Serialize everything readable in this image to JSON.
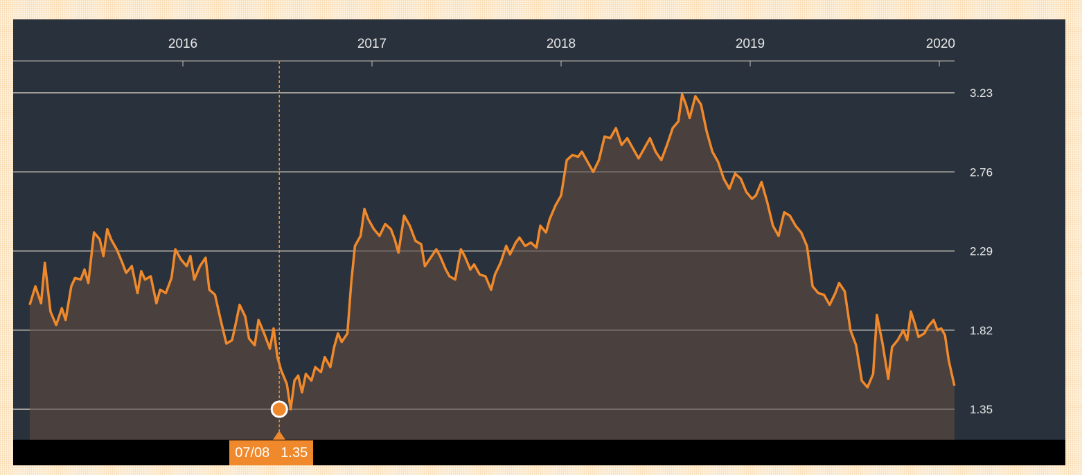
{
  "colors": {
    "background": "#29323c",
    "line": "#f0892b",
    "area": "#4a413f",
    "gridline": "#c9c2b8",
    "tag": "#f0892b"
  },
  "tooltip": {
    "date": "07/08",
    "value": "1.35"
  },
  "chart_data": {
    "type": "area",
    "title": "",
    "xlabel": "",
    "ylabel": "",
    "x_ticks": [
      "2016",
      "2017",
      "2018",
      "2019",
      "2020"
    ],
    "y_ticks": [
      "1.35",
      "1.82",
      "2.29",
      "2.76",
      "3.23"
    ],
    "ylim": [
      1.17,
      3.43
    ],
    "xlim": [
      2015.19,
      2020.08
    ],
    "grid": "horizontal",
    "highlight": {
      "x": 2016.51,
      "y": 1.35,
      "label_date": "07/08",
      "label_value": "1.35"
    },
    "series": [
      {
        "points": [
          [
            2015.19,
            1.97
          ],
          [
            2015.22,
            2.08
          ],
          [
            2015.25,
            1.98
          ],
          [
            2015.27,
            2.22
          ],
          [
            2015.3,
            1.93
          ],
          [
            2015.33,
            1.85
          ],
          [
            2015.36,
            1.95
          ],
          [
            2015.38,
            1.88
          ],
          [
            2015.41,
            2.08
          ],
          [
            2015.43,
            2.13
          ],
          [
            2015.46,
            2.12
          ],
          [
            2015.48,
            2.18
          ],
          [
            2015.5,
            2.1
          ],
          [
            2015.53,
            2.4
          ],
          [
            2015.56,
            2.36
          ],
          [
            2015.58,
            2.26
          ],
          [
            2015.6,
            2.42
          ],
          [
            2015.62,
            2.36
          ],
          [
            2015.65,
            2.3
          ],
          [
            2015.68,
            2.22
          ],
          [
            2015.7,
            2.16
          ],
          [
            2015.73,
            2.2
          ],
          [
            2015.76,
            2.04
          ],
          [
            2015.78,
            2.17
          ],
          [
            2015.8,
            2.12
          ],
          [
            2015.83,
            2.14
          ],
          [
            2015.86,
            1.98
          ],
          [
            2015.88,
            2.06
          ],
          [
            2015.91,
            2.04
          ],
          [
            2015.94,
            2.13
          ],
          [
            2015.96,
            2.3
          ],
          [
            2015.99,
            2.24
          ],
          [
            2016.02,
            2.2
          ],
          [
            2016.04,
            2.26
          ],
          [
            2016.06,
            2.12
          ],
          [
            2016.09,
            2.2
          ],
          [
            2016.12,
            2.25
          ],
          [
            2016.14,
            2.06
          ],
          [
            2016.17,
            2.03
          ],
          [
            2016.2,
            1.88
          ],
          [
            2016.23,
            1.74
          ],
          [
            2016.26,
            1.76
          ],
          [
            2016.28,
            1.86
          ],
          [
            2016.3,
            1.97
          ],
          [
            2016.33,
            1.9
          ],
          [
            2016.35,
            1.77
          ],
          [
            2016.38,
            1.73
          ],
          [
            2016.4,
            1.88
          ],
          [
            2016.43,
            1.8
          ],
          [
            2016.46,
            1.71
          ],
          [
            2016.48,
            1.83
          ],
          [
            2016.5,
            1.66
          ],
          [
            2016.52,
            1.58
          ],
          [
            2016.55,
            1.5
          ],
          [
            2016.57,
            1.35
          ],
          [
            2016.59,
            1.52
          ],
          [
            2016.61,
            1.55
          ],
          [
            2016.63,
            1.45
          ],
          [
            2016.65,
            1.56
          ],
          [
            2016.68,
            1.52
          ],
          [
            2016.7,
            1.6
          ],
          [
            2016.73,
            1.57
          ],
          [
            2016.75,
            1.66
          ],
          [
            2016.78,
            1.6
          ],
          [
            2016.8,
            1.72
          ],
          [
            2016.82,
            1.8
          ],
          [
            2016.84,
            1.75
          ],
          [
            2016.87,
            1.8
          ],
          [
            2016.89,
            2.1
          ],
          [
            2016.91,
            2.32
          ],
          [
            2016.94,
            2.38
          ],
          [
            2016.96,
            2.54
          ],
          [
            2016.98,
            2.48
          ],
          [
            2017.01,
            2.42
          ],
          [
            2017.04,
            2.38
          ],
          [
            2017.07,
            2.45
          ],
          [
            2017.1,
            2.42
          ],
          [
            2017.12,
            2.36
          ],
          [
            2017.14,
            2.28
          ],
          [
            2017.17,
            2.5
          ],
          [
            2017.2,
            2.44
          ],
          [
            2017.23,
            2.35
          ],
          [
            2017.26,
            2.33
          ],
          [
            2017.28,
            2.2
          ],
          [
            2017.31,
            2.25
          ],
          [
            2017.34,
            2.3
          ],
          [
            2017.36,
            2.26
          ],
          [
            2017.39,
            2.18
          ],
          [
            2017.41,
            2.14
          ],
          [
            2017.44,
            2.12
          ],
          [
            2017.47,
            2.3
          ],
          [
            2017.49,
            2.26
          ],
          [
            2017.52,
            2.18
          ],
          [
            2017.54,
            2.21
          ],
          [
            2017.57,
            2.15
          ],
          [
            2017.6,
            2.14
          ],
          [
            2017.63,
            2.06
          ],
          [
            2017.65,
            2.15
          ],
          [
            2017.68,
            2.22
          ],
          [
            2017.71,
            2.32
          ],
          [
            2017.73,
            2.27
          ],
          [
            2017.76,
            2.34
          ],
          [
            2017.78,
            2.37
          ],
          [
            2017.81,
            2.32
          ],
          [
            2017.84,
            2.34
          ],
          [
            2017.87,
            2.31
          ],
          [
            2017.89,
            2.44
          ],
          [
            2017.92,
            2.4
          ],
          [
            2017.94,
            2.48
          ],
          [
            2017.97,
            2.56
          ],
          [
            2018.0,
            2.62
          ],
          [
            2018.03,
            2.83
          ],
          [
            2018.06,
            2.86
          ],
          [
            2018.09,
            2.85
          ],
          [
            2018.11,
            2.88
          ],
          [
            2018.14,
            2.82
          ],
          [
            2018.17,
            2.76
          ],
          [
            2018.2,
            2.83
          ],
          [
            2018.23,
            2.97
          ],
          [
            2018.26,
            2.96
          ],
          [
            2018.29,
            3.02
          ],
          [
            2018.32,
            2.92
          ],
          [
            2018.35,
            2.96
          ],
          [
            2018.38,
            2.9
          ],
          [
            2018.41,
            2.84
          ],
          [
            2018.44,
            2.9
          ],
          [
            2018.47,
            2.96
          ],
          [
            2018.5,
            2.88
          ],
          [
            2018.53,
            2.83
          ],
          [
            2018.56,
            2.92
          ],
          [
            2018.59,
            3.02
          ],
          [
            2018.62,
            3.06
          ],
          [
            2018.64,
            3.22
          ],
          [
            2018.66,
            3.16
          ],
          [
            2018.68,
            3.08
          ],
          [
            2018.71,
            3.21
          ],
          [
            2018.74,
            3.16
          ],
          [
            2018.77,
            3.0
          ],
          [
            2018.8,
            2.88
          ],
          [
            2018.83,
            2.82
          ],
          [
            2018.86,
            2.72
          ],
          [
            2018.89,
            2.66
          ],
          [
            2018.92,
            2.75
          ],
          [
            2018.95,
            2.72
          ],
          [
            2018.98,
            2.64
          ],
          [
            2019.01,
            2.6
          ],
          [
            2019.03,
            2.62
          ],
          [
            2019.06,
            2.7
          ],
          [
            2019.09,
            2.58
          ],
          [
            2019.12,
            2.44
          ],
          [
            2019.15,
            2.38
          ],
          [
            2019.18,
            2.52
          ],
          [
            2019.21,
            2.5
          ],
          [
            2019.24,
            2.44
          ],
          [
            2019.27,
            2.4
          ],
          [
            2019.3,
            2.32
          ],
          [
            2019.33,
            2.08
          ],
          [
            2019.36,
            2.04
          ],
          [
            2019.39,
            2.03
          ],
          [
            2019.42,
            1.97
          ],
          [
            2019.45,
            2.04
          ],
          [
            2019.47,
            2.1
          ],
          [
            2019.5,
            2.05
          ],
          [
            2019.53,
            1.82
          ],
          [
            2019.56,
            1.73
          ],
          [
            2019.59,
            1.52
          ],
          [
            2019.62,
            1.48
          ],
          [
            2019.65,
            1.56
          ],
          [
            2019.67,
            1.91
          ],
          [
            2019.7,
            1.74
          ],
          [
            2019.73,
            1.53
          ],
          [
            2019.75,
            1.72
          ],
          [
            2019.78,
            1.76
          ],
          [
            2019.81,
            1.82
          ],
          [
            2019.83,
            1.76
          ],
          [
            2019.85,
            1.93
          ],
          [
            2019.87,
            1.86
          ],
          [
            2019.89,
            1.78
          ],
          [
            2019.92,
            1.8
          ],
          [
            2019.94,
            1.84
          ],
          [
            2019.97,
            1.88
          ],
          [
            2019.99,
            1.82
          ],
          [
            2020.01,
            1.83
          ],
          [
            2020.03,
            1.79
          ],
          [
            2020.05,
            1.64
          ],
          [
            2020.08,
            1.49
          ]
        ]
      }
    ]
  }
}
